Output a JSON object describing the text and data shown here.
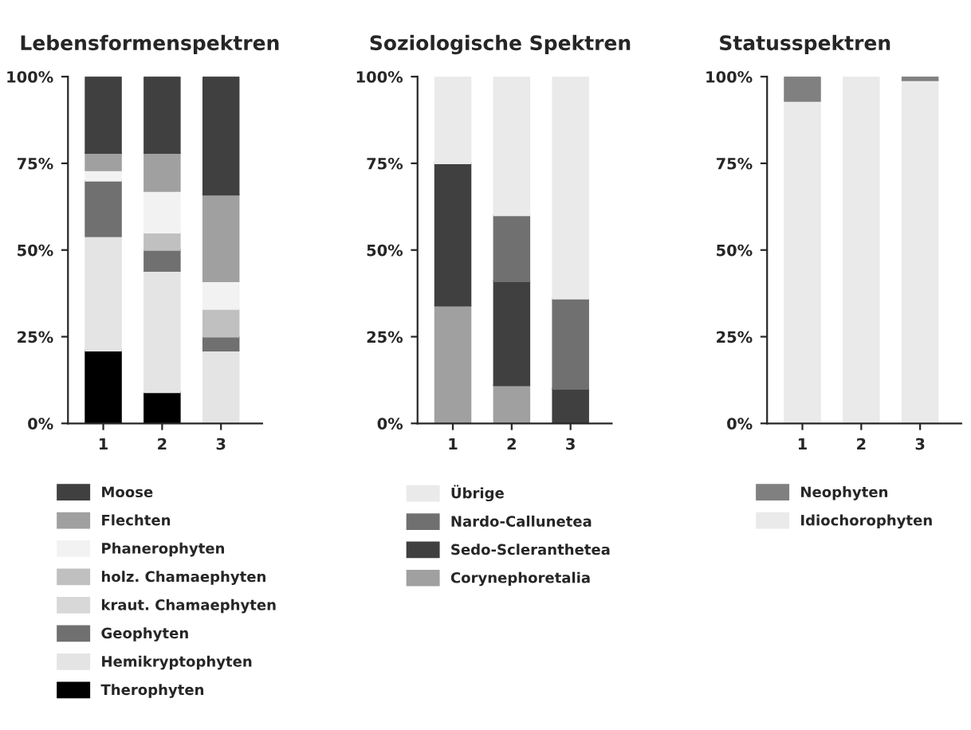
{
  "chart_data": [
    {
      "type": "bar",
      "title": "Lebensformenspektren",
      "categories": [
        "1",
        "2",
        "3"
      ],
      "stacked": true,
      "legend": "bottom",
      "grid": false,
      "ylim": [
        0,
        100
      ],
      "yticks": [
        {
          "value": 0,
          "label": "0%"
        },
        {
          "value": 25,
          "label": "25%"
        },
        {
          "value": 50,
          "label": "50%"
        },
        {
          "value": 75,
          "label": "75%"
        },
        {
          "value": 100,
          "label": "100%"
        }
      ],
      "series": [
        {
          "name": "Therophyten",
          "color": "#000000",
          "values": [
            21,
            9,
            0
          ]
        },
        {
          "name": "Hemikryptophyten",
          "color": "#e4e4e4",
          "values": [
            33,
            35,
            21
          ]
        },
        {
          "name": "Geophyten",
          "color": "#707070",
          "values": [
            16,
            6,
            4
          ]
        },
        {
          "name": "kraut. Chamaephyten",
          "color": "#d8d8d8",
          "values": [
            0,
            0,
            0
          ]
        },
        {
          "name": "holz. Chamaephyten",
          "color": "#c0c0c0",
          "values": [
            0,
            5,
            8
          ]
        },
        {
          "name": "Phanerophyten",
          "color": "#f2f2f2",
          "values": [
            3,
            12,
            8
          ]
        },
        {
          "name": "Flechten",
          "color": "#a0a0a0",
          "values": [
            5,
            11,
            25
          ]
        },
        {
          "name": "Moose",
          "color": "#404040",
          "values": [
            22,
            22,
            34
          ]
        }
      ]
    },
    {
      "type": "bar",
      "title": "Soziologische Spektren",
      "categories": [
        "1",
        "2",
        "3"
      ],
      "stacked": true,
      "legend": "bottom",
      "grid": false,
      "ylim": [
        0,
        100
      ],
      "yticks": [
        {
          "value": 0,
          "label": "0%"
        },
        {
          "value": 25,
          "label": "25%"
        },
        {
          "value": 50,
          "label": "50%"
        },
        {
          "value": 75,
          "label": "75%"
        },
        {
          "value": 100,
          "label": "100%"
        }
      ],
      "series": [
        {
          "name": "Corynephoretalia",
          "color": "#a0a0a0",
          "values": [
            34,
            11,
            0
          ]
        },
        {
          "name": "Sedo-Scleranthetea",
          "color": "#404040",
          "values": [
            41,
            30,
            10
          ]
        },
        {
          "name": "Nardo-Callunetea",
          "color": "#707070",
          "values": [
            0,
            19,
            26
          ]
        },
        {
          "name": "Übrige",
          "color": "#eaeaea",
          "values": [
            25,
            40,
            64
          ]
        }
      ]
    },
    {
      "type": "bar",
      "title": "Statusspektren",
      "categories": [
        "1",
        "2",
        "3"
      ],
      "stacked": true,
      "legend": "bottom",
      "grid": false,
      "ylim": [
        0,
        100
      ],
      "yticks": [
        {
          "value": 0,
          "label": "0%"
        },
        {
          "value": 25,
          "label": "25%"
        },
        {
          "value": 50,
          "label": "50%"
        },
        {
          "value": 75,
          "label": "75%"
        },
        {
          "value": 100,
          "label": "100%"
        }
      ],
      "series": [
        {
          "name": "Idiochorophyten",
          "color": "#eaeaea",
          "values": [
            93,
            100,
            99
          ]
        },
        {
          "name": "Neophyten",
          "color": "#808080",
          "values": [
            7,
            0,
            1
          ]
        }
      ]
    }
  ]
}
